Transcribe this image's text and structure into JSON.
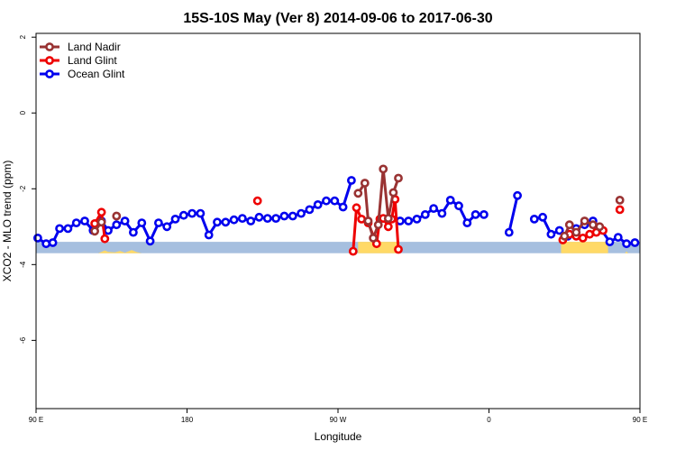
{
  "chart_data": {
    "type": "line",
    "title": "15S-10S May (Ver 8)   2014-09-06 to 2017-06-30",
    "xlabel": "Longitude",
    "ylabel": "XCO2 - MLO trend (ppm)",
    "xlim": [
      90,
      450
    ],
    "ylim": [
      -7.8,
      2.1
    ],
    "x_ticks": [
      {
        "value": 90,
        "label": "90 E"
      },
      {
        "value": 180,
        "label": "180"
      },
      {
        "value": 270,
        "label": "90 W"
      },
      {
        "value": 360,
        "label": "0"
      },
      {
        "value": 450,
        "label": "90 E"
      },
      {
        "value": 540,
        "label": "180"
      }
    ],
    "y_ticks": [
      {
        "value": 2,
        "label": "2"
      },
      {
        "value": 0,
        "label": "0"
      },
      {
        "value": -2,
        "label": "-2"
      },
      {
        "value": -4,
        "label": "-4"
      },
      {
        "value": -6,
        "label": "-6"
      }
    ],
    "legend_position": "top-left",
    "land_band": {
      "y_top": -3.4,
      "y_bottom": -3.7,
      "color": "#a6bfdf",
      "land_color": "#ffd966"
    },
    "land_segments": [
      [
        [
          127,
          0
        ],
        [
          129,
          0.12
        ],
        [
          131,
          0.25
        ],
        [
          133,
          0.12
        ],
        [
          137,
          0.08
        ],
        [
          140,
          0.2
        ],
        [
          143,
          0.05
        ],
        [
          147,
          0.28
        ],
        [
          150,
          0.1
        ],
        [
          153,
          0
        ]
      ],
      [
        [
          282,
          1
        ],
        [
          306,
          1
        ]
      ],
      [
        [
          403,
          1
        ],
        [
          431,
          1
        ]
      ],
      [
        [
          441,
          0
        ],
        [
          442,
          0.15
        ],
        [
          443,
          0
        ]
      ],
      [
        [
          489,
          0
        ],
        [
          491,
          0.2
        ],
        [
          494,
          0.35
        ],
        [
          497,
          0.22
        ],
        [
          500,
          0.38
        ],
        [
          503,
          0.3
        ],
        [
          507,
          0.45
        ],
        [
          510,
          0.18
        ],
        [
          514,
          0
        ]
      ]
    ],
    "series": [
      {
        "name": "Ocean Glint",
        "color": "#0000ee",
        "points": [
          [
            91,
            -3.3
          ],
          [
            96,
            -3.45
          ],
          [
            100,
            -3.42
          ],
          [
            104,
            -3.05
          ],
          [
            109,
            -3.05
          ],
          [
            114,
            -2.9
          ],
          [
            119,
            -2.85
          ],
          [
            124,
            -3.1
          ],
          [
            129,
            -2.85
          ],
          [
            133,
            -3.1
          ],
          [
            138,
            -2.95
          ],
          [
            143,
            -2.85
          ],
          [
            148,
            -3.15
          ],
          [
            153,
            -2.9
          ],
          [
            158,
            -3.38
          ],
          [
            163,
            -2.9
          ],
          [
            168,
            -3.0
          ],
          [
            173,
            -2.8
          ],
          [
            178,
            -2.7
          ],
          [
            183,
            -2.65
          ],
          [
            188,
            -2.65
          ],
          [
            193,
            -3.22
          ],
          [
            198,
            -2.88
          ],
          [
            203,
            -2.88
          ],
          [
            208,
            -2.82
          ],
          [
            213,
            -2.78
          ],
          [
            218,
            -2.85
          ],
          [
            223,
            -2.75
          ],
          [
            228,
            -2.78
          ],
          [
            233,
            -2.78
          ],
          [
            238,
            -2.72
          ],
          [
            243,
            -2.72
          ],
          [
            248,
            -2.65
          ],
          [
            253,
            -2.55
          ],
          [
            258,
            -2.42
          ],
          [
            263,
            -2.32
          ],
          [
            268,
            -2.32
          ],
          [
            273,
            -2.48
          ],
          [
            278,
            -1.78
          ],
          null,
          [
            307,
            -2.85
          ],
          [
            312,
            -2.85
          ],
          [
            317,
            -2.8
          ],
          [
            322,
            -2.68
          ],
          [
            327,
            -2.52
          ],
          [
            332,
            -2.65
          ],
          [
            337,
            -2.3
          ],
          [
            342,
            -2.45
          ],
          [
            347,
            -2.9
          ],
          [
            352,
            -2.68
          ],
          [
            357,
            -2.68
          ],
          null,
          [
            372,
            -3.15
          ],
          [
            377,
            -2.18
          ],
          null,
          [
            387,
            -2.8
          ],
          [
            392,
            -2.75
          ],
          [
            397,
            -3.2
          ],
          [
            402,
            -3.1
          ],
          [
            407,
            -3.25
          ],
          [
            412,
            -3.05
          ],
          [
            417,
            -2.95
          ],
          [
            422,
            -2.85
          ],
          [
            427,
            -3.08
          ],
          [
            432,
            -3.4
          ],
          [
            437,
            -3.28
          ],
          [
            442,
            -3.45
          ],
          [
            447,
            -3.42
          ],
          [
            452,
            -3.05
          ],
          [
            457,
            -3.05
          ],
          [
            462,
            -2.92
          ],
          [
            467,
            -2.82
          ],
          [
            472,
            -2.95
          ],
          [
            477,
            -3.05
          ],
          [
            482,
            -3.0
          ],
          [
            487,
            -2.85
          ],
          [
            492,
            -2.85
          ],
          [
            497,
            -2.92
          ],
          [
            502,
            -3.38
          ],
          [
            507,
            -2.9
          ],
          [
            512,
            -3.0
          ],
          [
            517,
            -2.8
          ]
        ]
      },
      {
        "name": "Land Glint",
        "color": "#ee0000",
        "points": [
          [
            125,
            -2.92
          ],
          [
            129,
            -2.62
          ],
          [
            131,
            -3.32
          ],
          null,
          [
            222,
            -2.32
          ],
          null,
          [
            279,
            -3.65
          ],
          [
            281,
            -2.5
          ],
          [
            284,
            -2.8
          ],
          [
            288,
            -2.9
          ],
          [
            293,
            -3.45
          ],
          [
            295,
            -2.8
          ],
          [
            297,
            -2.78
          ],
          [
            300,
            -3.0
          ],
          [
            302,
            -2.8
          ],
          [
            304,
            -2.28
          ],
          [
            306,
            -3.6
          ],
          null,
          [
            404,
            -3.35
          ],
          [
            408,
            -3.2
          ],
          [
            412,
            -3.25
          ],
          [
            416,
            -3.3
          ],
          [
            420,
            -3.2
          ],
          [
            424,
            -3.15
          ],
          [
            428,
            -3.1
          ],
          null,
          [
            438,
            -2.55
          ],
          null,
          [
            495,
            -2.95
          ],
          [
            497,
            -2.65
          ],
          [
            499,
            -3.35
          ]
        ]
      },
      {
        "name": "Land Nadir",
        "color": "#993333",
        "points": [
          [
            125,
            -3.12
          ],
          [
            129,
            -2.88
          ],
          null,
          [
            138,
            -2.72
          ],
          null,
          [
            282,
            -2.12
          ],
          [
            286,
            -1.85
          ],
          [
            288,
            -2.85
          ],
          [
            291,
            -3.3
          ],
          [
            294,
            -2.95
          ],
          [
            297,
            -1.48
          ],
          [
            300,
            -2.78
          ],
          [
            303,
            -2.1
          ],
          [
            306,
            -1.72
          ],
          null,
          [
            405,
            -3.25
          ],
          [
            408,
            -2.95
          ],
          [
            412,
            -3.15
          ],
          [
            417,
            -2.85
          ],
          [
            422,
            -2.95
          ],
          [
            426,
            -3.0
          ],
          null,
          [
            438,
            -2.3
          ],
          null,
          [
            494,
            -2.85
          ],
          [
            499,
            -3.0
          ],
          [
            503,
            -2.72
          ]
        ]
      }
    ]
  }
}
